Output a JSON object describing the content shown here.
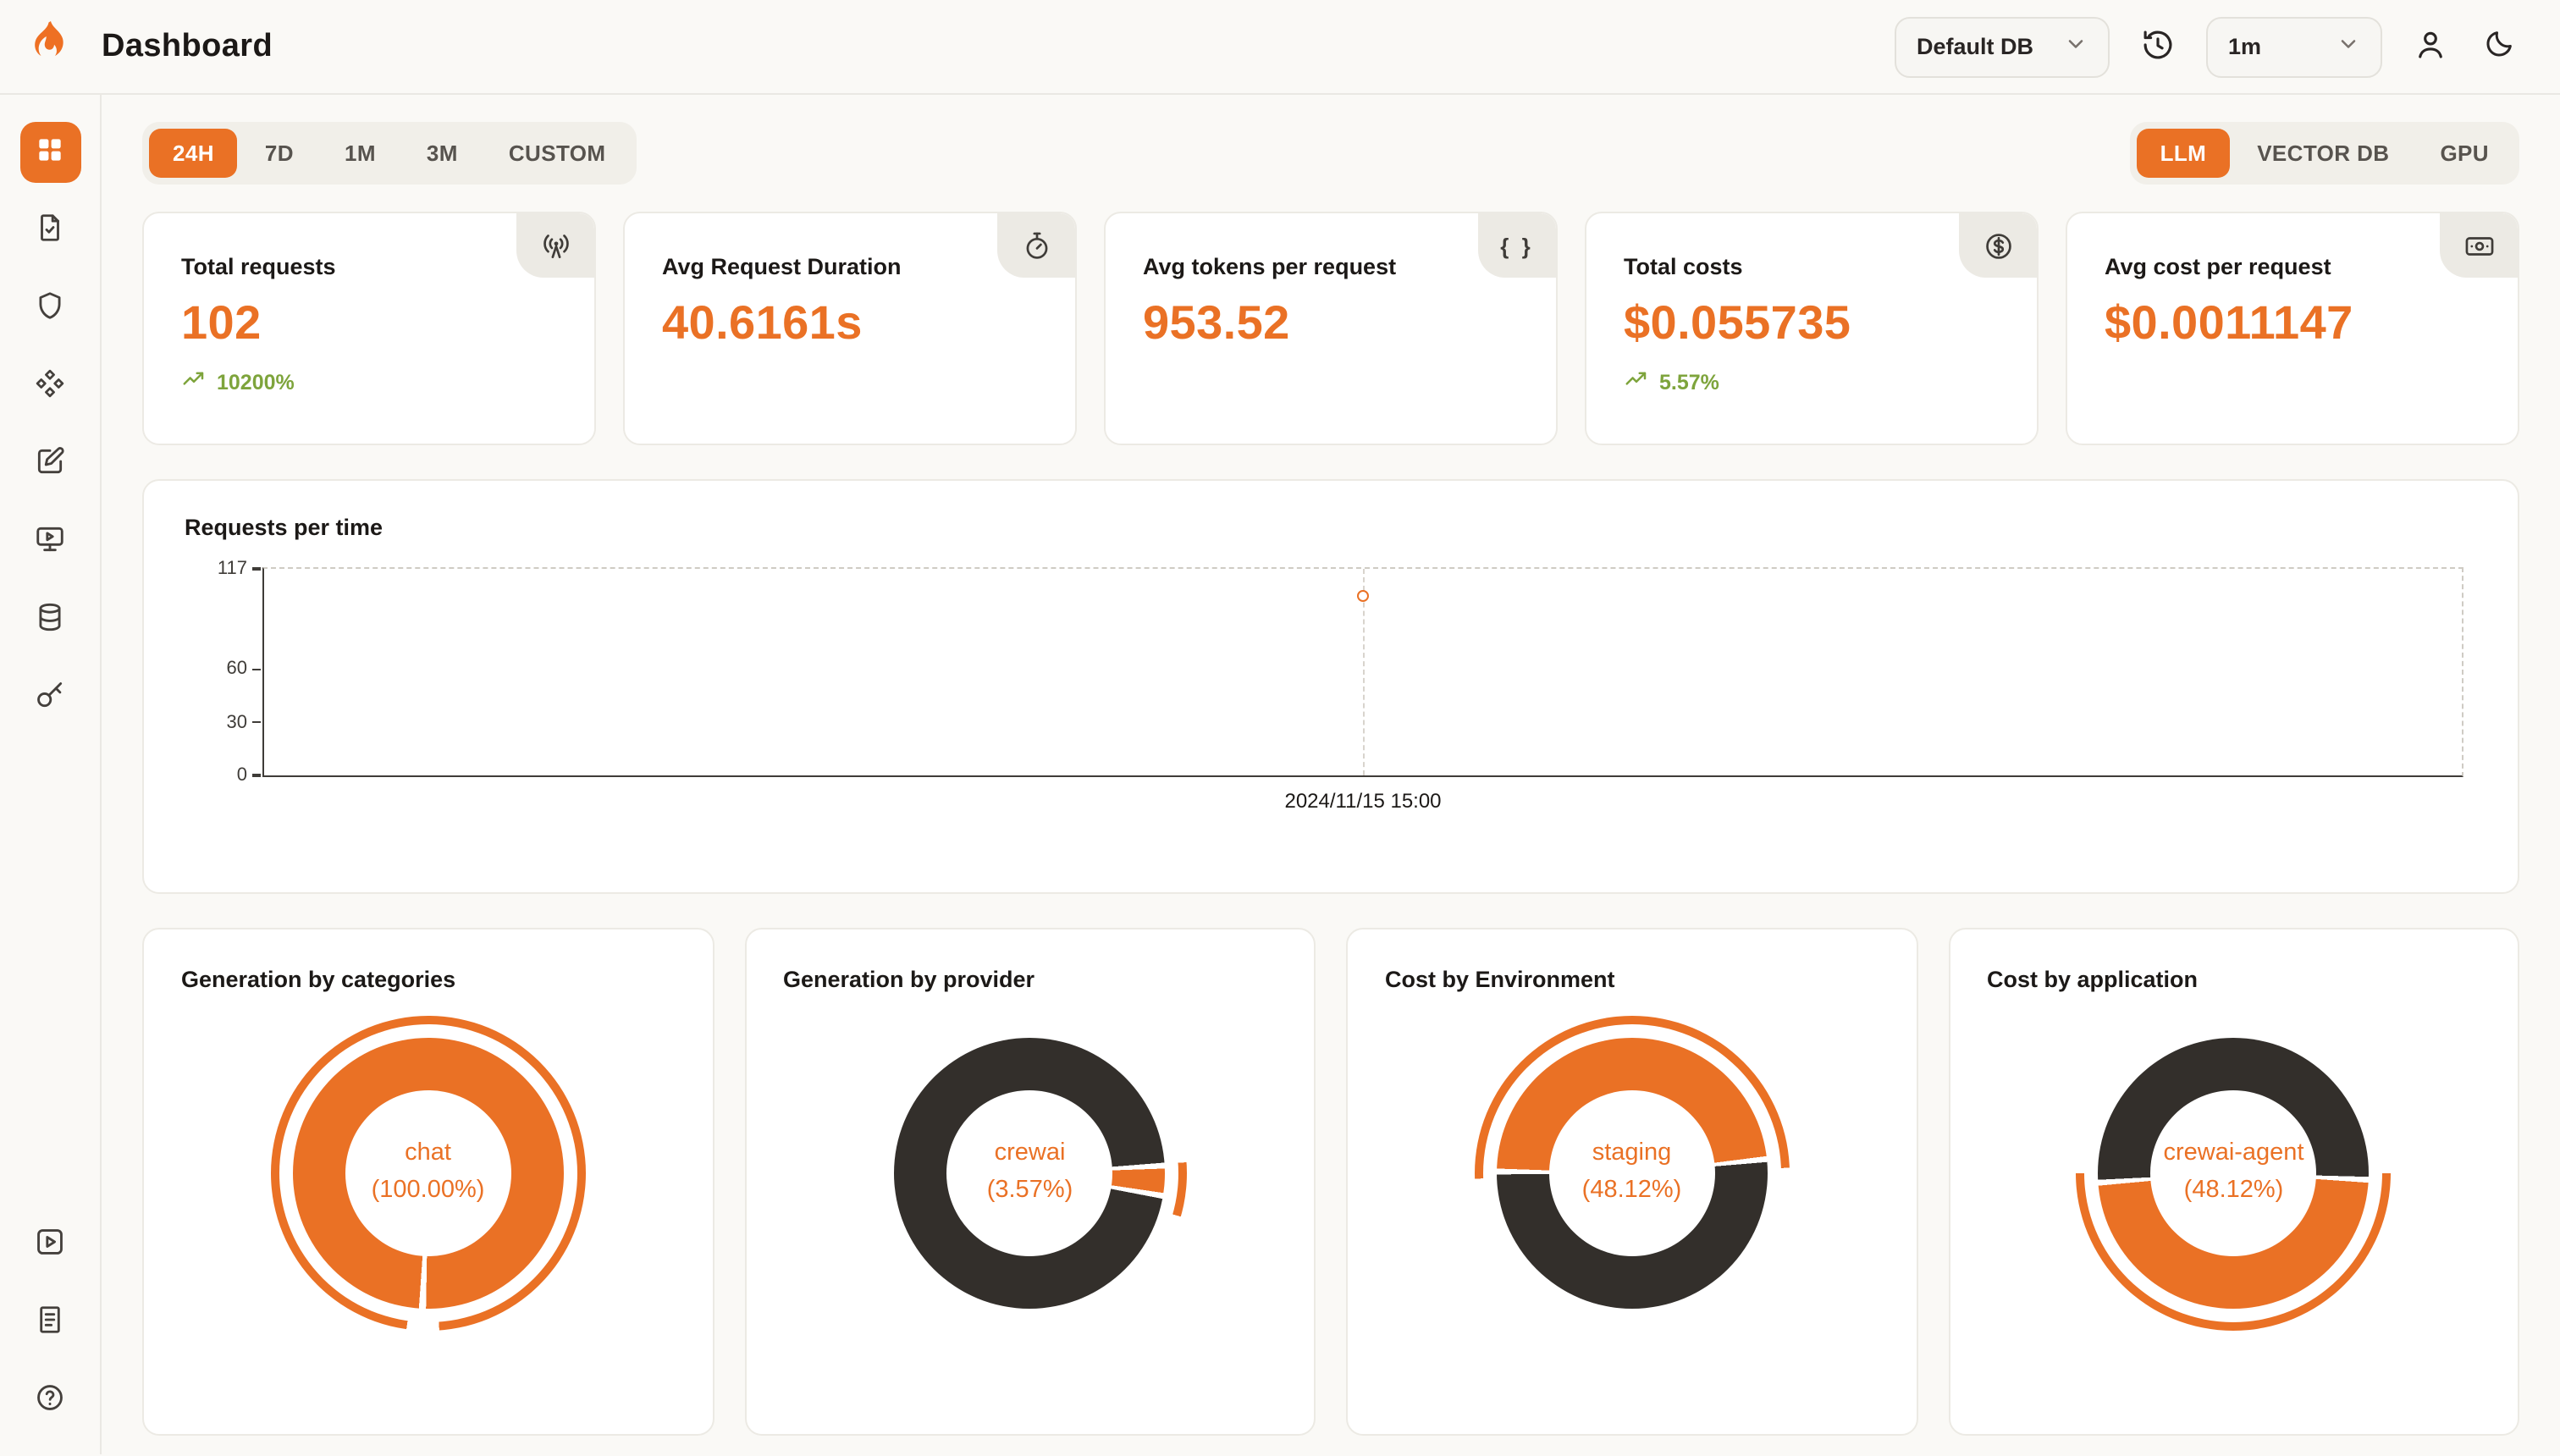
{
  "colors": {
    "accent": "#EA7125",
    "dark": "#332F2B",
    "green": "#7EA43C",
    "page_bg": "#FAF9F6",
    "card_bg": "#FFFFFF"
  },
  "header": {
    "title": "Dashboard",
    "db_select": "Default DB",
    "interval_select": "1m"
  },
  "sidebar": {
    "items": [
      {
        "name": "dashboard",
        "icon": "dashboard-grid-icon",
        "active": true
      },
      {
        "name": "requests",
        "icon": "file-document-icon",
        "active": false
      },
      {
        "name": "exceptions",
        "icon": "shield-icon",
        "active": false
      },
      {
        "name": "integrations",
        "icon": "modules-icon",
        "active": false
      },
      {
        "name": "evaluations",
        "icon": "note-edit-icon",
        "active": false
      },
      {
        "name": "playground",
        "icon": "monitor-play-icon",
        "active": false
      },
      {
        "name": "databases",
        "icon": "database-icon",
        "active": false
      },
      {
        "name": "api-keys",
        "icon": "key-icon",
        "active": false
      }
    ],
    "footer_items": [
      {
        "name": "getting-started",
        "icon": "play-square-icon"
      },
      {
        "name": "documentation",
        "icon": "file-lines-icon"
      },
      {
        "name": "help",
        "icon": "help-circle-icon"
      }
    ]
  },
  "time_tabs": [
    {
      "label": "24H",
      "active": true
    },
    {
      "label": "7D",
      "active": false
    },
    {
      "label": "1M",
      "active": false
    },
    {
      "label": "3M",
      "active": false
    },
    {
      "label": "CUSTOM",
      "active": false
    }
  ],
  "category_tabs": [
    {
      "label": "LLM",
      "active": true
    },
    {
      "label": "VECTOR DB",
      "active": false
    },
    {
      "label": "GPU",
      "active": false
    }
  ],
  "stats": [
    {
      "label": "Total requests",
      "value": "102",
      "trend": "10200%",
      "icon": "radio-tower-icon"
    },
    {
      "label": "Avg Request Duration",
      "value": "40.6161s",
      "trend": "",
      "icon": "timer-icon"
    },
    {
      "label": "Avg tokens per request",
      "value": "953.52",
      "trend": "",
      "icon": "braces-icon"
    },
    {
      "label": "Total costs",
      "value": "$0.055735",
      "trend": "5.57%",
      "icon": "dollar-circle-icon"
    },
    {
      "label": "Avg cost per request",
      "value": "$0.0011147",
      "trend": "",
      "icon": "banknote-icon"
    }
  ],
  "chart_data": [
    {
      "type": "line",
      "title": "Requests per time",
      "x": [
        "2024/11/15 15:00"
      ],
      "values": [
        102
      ],
      "ymax": 117,
      "yticks": [
        0,
        30,
        60,
        117
      ],
      "ylim": [
        0,
        117
      ],
      "legend": "none",
      "grid": "dashed-frame",
      "point": {
        "x_pct": 50,
        "value": 102,
        "label": "2024/11/15 15:00"
      }
    },
    {
      "type": "pie",
      "title": "Generation by categories",
      "center_label": "chat",
      "center_pct": "(100.00%)",
      "slices": [
        {
          "name": "chat",
          "pct": 100.0,
          "color": "accent"
        }
      ],
      "start_deg": 184,
      "gap_deg": 3,
      "outer_arc": {
        "from": 188,
        "to": 536
      }
    },
    {
      "type": "pie",
      "title": "Generation by provider",
      "center_label": "crewai",
      "center_pct": "(3.57%)",
      "slices": [
        {
          "name": "crewai",
          "pct": 3.57,
          "color": "accent"
        },
        {
          "name": "",
          "pct": 96.43,
          "color": "dark"
        }
      ],
      "start_deg": 88,
      "gap_deg": 2.5,
      "outer_arc": {
        "from": 86,
        "to": 106
      }
    },
    {
      "type": "pie",
      "title": "Cost by Environment",
      "center_label": "staging",
      "center_pct": "(48.12%)",
      "slices": [
        {
          "name": "staging",
          "pct": 48.12,
          "color": "accent"
        },
        {
          "name": "",
          "pct": 51.88,
          "color": "dark"
        }
      ],
      "start_deg": 272,
      "gap_deg": 2.5,
      "outer_arc": {
        "from": 268,
        "to": 448
      }
    },
    {
      "type": "pie",
      "title": "Cost by application",
      "center_label": "crewai-agent",
      "center_pct": "(48.12%)",
      "slices": [
        {
          "name": "crewai-agent",
          "pct": 48.12,
          "color": "accent"
        },
        {
          "name": "",
          "pct": 51.88,
          "color": "dark"
        }
      ],
      "start_deg": 94,
      "gap_deg": 2.5,
      "outer_arc": {
        "from": 90,
        "to": 270
      }
    }
  ]
}
